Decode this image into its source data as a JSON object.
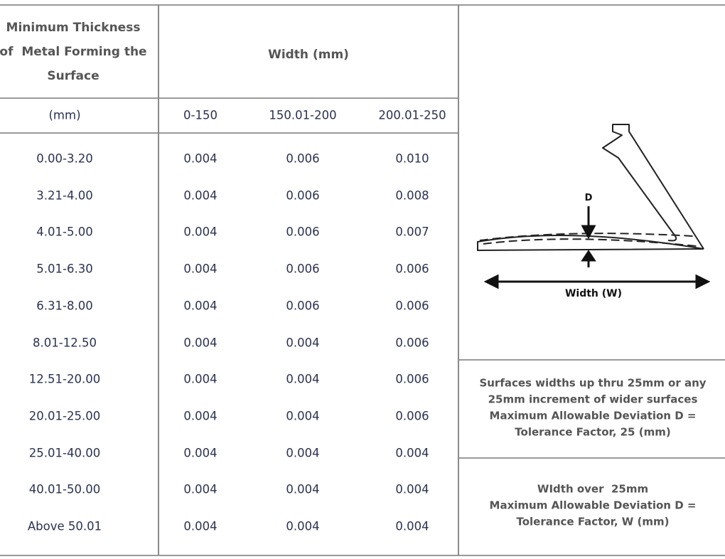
{
  "header": {
    "thickness_lines": [
      "Minimum Thickness",
      "of  Metal Forming the",
      "Surface"
    ],
    "width": "Width (mm)"
  },
  "subheader": [
    "(mm)",
    "0-150",
    "150.01-200",
    "200.01-250"
  ],
  "rows": [
    [
      "0.00-3.20",
      "0.004",
      "0.006",
      "0.010"
    ],
    [
      "3.21-4.00",
      "0.004",
      "0.006",
      "0.008"
    ],
    [
      "4.01-5.00",
      "0.004",
      "0.006",
      "0.007"
    ],
    [
      "5.01-6.30",
      "0.004",
      "0.006",
      "0.006"
    ],
    [
      "6.31-8.00",
      "0.004",
      "0.006",
      "0.006"
    ],
    [
      "8.01-12.50",
      "0.004",
      "0.004",
      "0.006"
    ],
    [
      "12.51-20.00",
      "0.004",
      "0.004",
      "0.006"
    ],
    [
      "20.01-25.00",
      "0.004",
      "0.004",
      "0.006"
    ],
    [
      "25.01-40.00",
      "0.004",
      "0.004",
      "0.004"
    ],
    [
      "40.01-50.00",
      "0.004",
      "0.004",
      "0.004"
    ],
    [
      "Above 50.01",
      "0.004",
      "0.004",
      "0.004"
    ]
  ],
  "diagram": {
    "d_label": "D",
    "width_label": "Width (W)"
  },
  "notes": [
    [
      "Surfaces widths up thru 25mm or any",
      "25mm increment of wider surfaces",
      "Maximum Allowable Deviation D =",
      "Tolerance Factor, 25 (mm)"
    ],
    [
      "WIdth over  25mm",
      "Maximum Allowable Deviation D =",
      "Tolerance Factor, W (mm)"
    ]
  ]
}
